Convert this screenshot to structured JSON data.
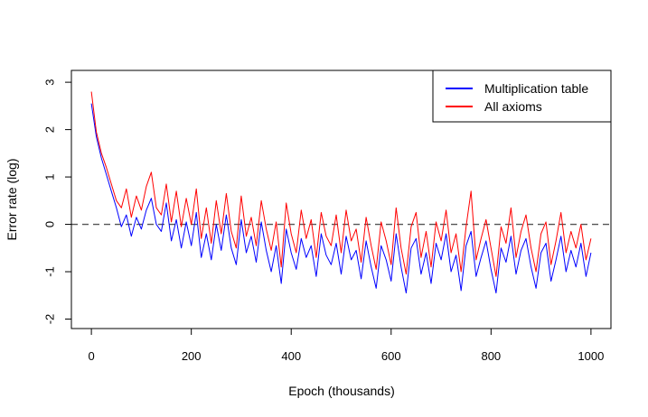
{
  "chart_data": {
    "type": "line",
    "title": "",
    "xlabel": "Epoch (thousands)",
    "ylabel": "Error rate (log)",
    "xlim": [
      -40,
      1040
    ],
    "ylim": [
      -2.2,
      3.25
    ],
    "x_ticks": [
      0,
      200,
      400,
      600,
      800,
      1000
    ],
    "x_tick_labels": [
      "0",
      "200",
      "400",
      "600",
      "800",
      "1000"
    ],
    "y_ticks": [
      -2,
      -1,
      0,
      1,
      2,
      3
    ],
    "y_tick_labels": [
      "-2",
      "-1",
      "0",
      "1",
      "2",
      "3"
    ],
    "reference_line": {
      "y": 0,
      "style": "dashed",
      "color": "#555555"
    },
    "legend_position": "top-right",
    "series": [
      {
        "name": "Multiplication table",
        "color": "#0000ff",
        "x": [
          0,
          10,
          20,
          30,
          40,
          50,
          60,
          70,
          80,
          90,
          100,
          110,
          120,
          130,
          140,
          150,
          160,
          170,
          180,
          190,
          200,
          210,
          220,
          230,
          240,
          250,
          260,
          270,
          280,
          290,
          300,
          310,
          320,
          330,
          340,
          350,
          360,
          370,
          380,
          390,
          400,
          410,
          420,
          430,
          440,
          450,
          460,
          470,
          480,
          490,
          500,
          510,
          520,
          530,
          540,
          550,
          560,
          570,
          580,
          590,
          600,
          610,
          620,
          630,
          640,
          650,
          660,
          670,
          680,
          690,
          700,
          710,
          720,
          730,
          740,
          750,
          760,
          770,
          780,
          790,
          800,
          810,
          820,
          830,
          840,
          850,
          860,
          870,
          880,
          890,
          900,
          910,
          920,
          930,
          940,
          950,
          960,
          970,
          980,
          990,
          1000
        ],
        "y": [
          2.55,
          1.85,
          1.4,
          1.05,
          0.7,
          0.35,
          -0.05,
          0.2,
          -0.25,
          0.15,
          -0.1,
          0.3,
          0.55,
          0.0,
          -0.15,
          0.45,
          -0.35,
          0.1,
          -0.5,
          0.05,
          -0.45,
          0.25,
          -0.7,
          -0.2,
          -0.75,
          0.0,
          -0.55,
          0.2,
          -0.5,
          -0.85,
          0.1,
          -0.6,
          -0.25,
          -0.8,
          0.05,
          -0.55,
          -1.0,
          -0.45,
          -1.25,
          -0.1,
          -0.6,
          -0.95,
          -0.3,
          -0.7,
          -0.45,
          -1.1,
          -0.2,
          -0.65,
          -0.85,
          -0.4,
          -1.05,
          -0.25,
          -0.75,
          -0.55,
          -1.15,
          -0.35,
          -0.9,
          -1.35,
          -0.45,
          -0.75,
          -1.2,
          -0.2,
          -0.9,
          -1.45,
          -0.5,
          -0.3,
          -1.05,
          -0.6,
          -1.25,
          -0.4,
          -0.75,
          -0.2,
          -1.0,
          -0.65,
          -1.4,
          -0.45,
          -0.15,
          -1.1,
          -0.7,
          -0.35,
          -0.95,
          -1.45,
          -0.5,
          -0.8,
          -0.25,
          -1.05,
          -0.55,
          -0.3,
          -0.9,
          -1.35,
          -0.6,
          -0.4,
          -1.2,
          -0.75,
          -0.25,
          -1.0,
          -0.55,
          -0.9,
          -0.4,
          -1.1,
          -0.6
        ]
      },
      {
        "name": "All axioms",
        "color": "#ff0000",
        "x": [
          0,
          10,
          20,
          30,
          40,
          50,
          60,
          70,
          80,
          90,
          100,
          110,
          120,
          130,
          140,
          150,
          160,
          170,
          180,
          190,
          200,
          210,
          220,
          230,
          240,
          250,
          260,
          270,
          280,
          290,
          300,
          310,
          320,
          330,
          340,
          350,
          360,
          370,
          380,
          390,
          400,
          410,
          420,
          430,
          440,
          450,
          460,
          470,
          480,
          490,
          500,
          510,
          520,
          530,
          540,
          550,
          560,
          570,
          580,
          590,
          600,
          610,
          620,
          630,
          640,
          650,
          660,
          670,
          680,
          690,
          700,
          710,
          720,
          730,
          740,
          750,
          760,
          770,
          780,
          790,
          800,
          810,
          820,
          830,
          840,
          850,
          860,
          870,
          880,
          890,
          900,
          910,
          920,
          930,
          940,
          950,
          960,
          970,
          980,
          990,
          1000
        ],
        "y": [
          2.8,
          1.95,
          1.5,
          1.2,
          0.85,
          0.5,
          0.35,
          0.75,
          0.15,
          0.6,
          0.3,
          0.8,
          1.1,
          0.35,
          0.2,
          0.85,
          0.05,
          0.7,
          -0.05,
          0.55,
          0.0,
          0.75,
          -0.3,
          0.35,
          -0.4,
          0.5,
          -0.2,
          0.65,
          -0.15,
          -0.5,
          0.6,
          -0.25,
          0.15,
          -0.45,
          0.5,
          -0.1,
          -0.55,
          0.05,
          -0.9,
          0.45,
          -0.2,
          -0.6,
          0.3,
          -0.3,
          0.1,
          -0.7,
          0.25,
          -0.25,
          -0.45,
          0.2,
          -0.6,
          0.3,
          -0.35,
          -0.1,
          -0.8,
          0.15,
          -0.45,
          -0.95,
          0.05,
          -0.35,
          -0.85,
          0.35,
          -0.5,
          -1.05,
          -0.05,
          0.25,
          -0.7,
          -0.15,
          -0.9,
          0.05,
          -0.35,
          0.3,
          -0.6,
          -0.2,
          -1.0,
          -0.05,
          0.7,
          -0.75,
          -0.3,
          0.1,
          -0.5,
          -1.1,
          -0.05,
          -0.4,
          0.35,
          -0.7,
          -0.15,
          0.2,
          -0.5,
          -1.0,
          -0.2,
          0.05,
          -0.85,
          -0.35,
          0.25,
          -0.6,
          -0.15,
          -0.5,
          0.0,
          -0.75,
          -0.3
        ]
      }
    ]
  }
}
